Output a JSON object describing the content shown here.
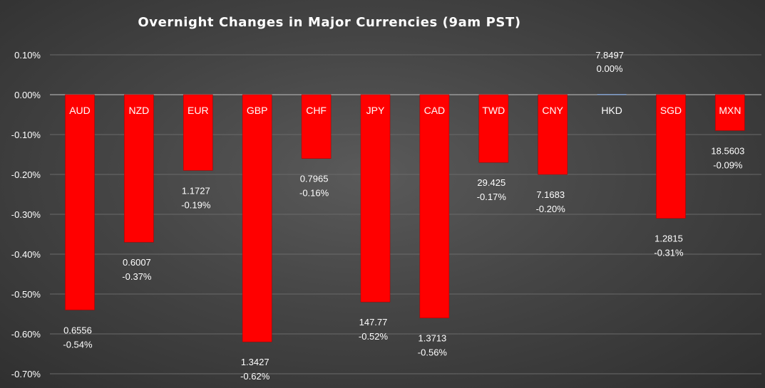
{
  "chart_data": {
    "type": "bar",
    "title": "Overnight Changes in Major Currencies (9am PST)",
    "xlabel": "",
    "ylabel": "",
    "ylim": [
      -0.7,
      0.1
    ],
    "y_ticks": [
      "0.10%",
      "0.00%",
      "-0.10%",
      "-0.20%",
      "-0.30%",
      "-0.40%",
      "-0.50%",
      "-0.60%",
      "-0.70%"
    ],
    "y_tick_values": [
      0.1,
      0.0,
      -0.1,
      -0.2,
      -0.3,
      -0.4,
      -0.5,
      -0.6,
      -0.7
    ],
    "grid": true,
    "categories": [
      "AUD",
      "NZD",
      "EUR",
      "GBP",
      "CHF",
      "JPY",
      "CAD",
      "TWD",
      "CNY",
      "HKD",
      "SGD",
      "MXN"
    ],
    "values": [
      -0.54,
      -0.37,
      -0.19,
      -0.62,
      -0.16,
      -0.52,
      -0.56,
      -0.17,
      -0.2,
      0.0,
      -0.31,
      -0.09
    ],
    "rates": [
      "0.6556",
      "0.6007",
      "1.1727",
      "1.3427",
      "0.7965",
      "147.77",
      "1.3713",
      "29.425",
      "7.1683",
      "7.8497",
      "1.2815",
      "18.5603"
    ],
    "value_labels": [
      "-0.54%",
      "-0.37%",
      "-0.19%",
      "-0.62%",
      "-0.16%",
      "-0.52%",
      "-0.56%",
      "-0.17%",
      "-0.20%",
      "0.00%",
      "-0.31%",
      "-0.09%"
    ]
  },
  "colors": {
    "bar": "#ff0000",
    "zero_bar": "#7f9cc9",
    "text": "#ffffff",
    "grid": "#6a6a6a"
  }
}
